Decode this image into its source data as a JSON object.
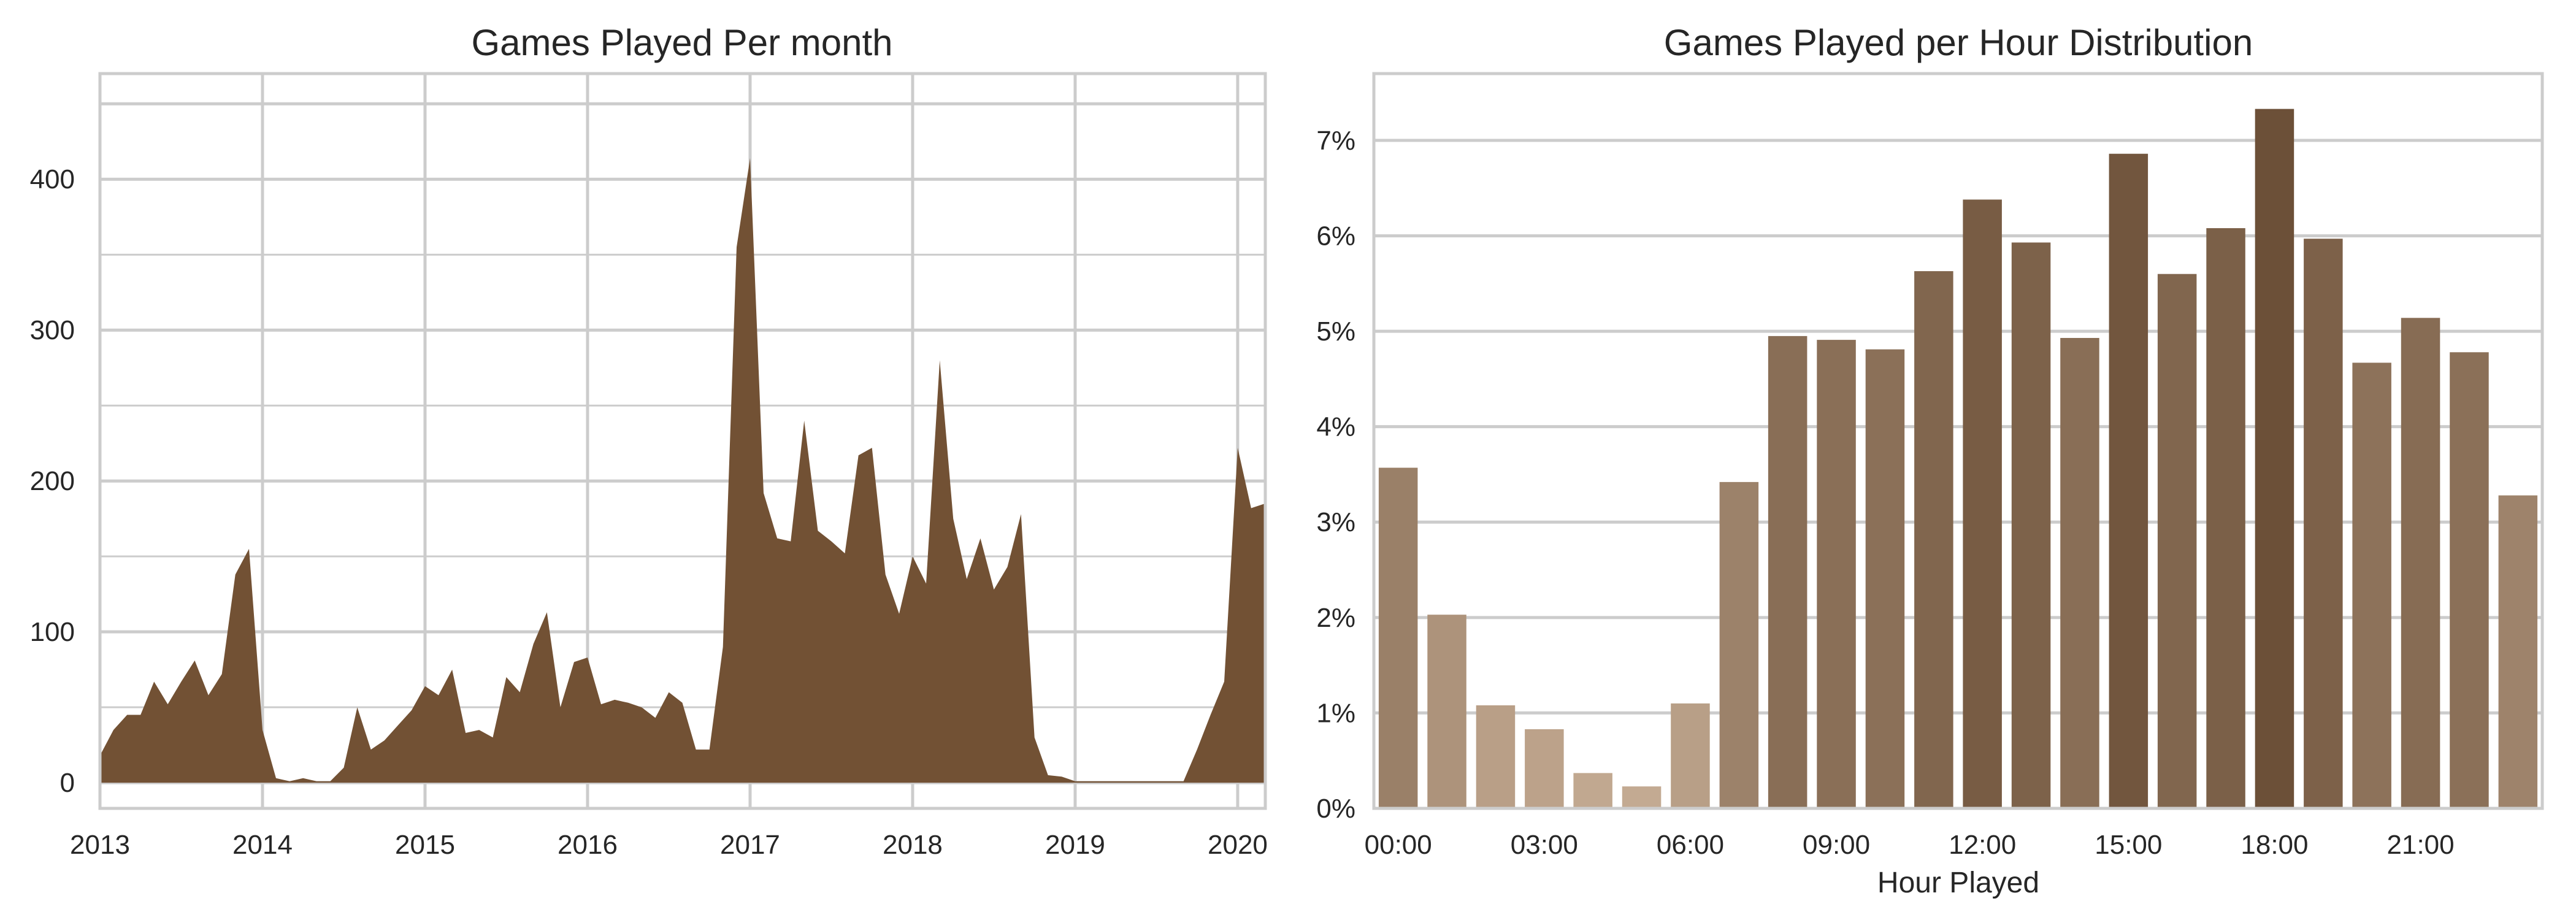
{
  "chart_data": [
    {
      "type": "area",
      "title": "Games Played Per month",
      "xlabel": "",
      "ylabel": "",
      "x_ticks": [
        "2013",
        "2014",
        "2015",
        "2016",
        "2017",
        "2018",
        "2019",
        "2020"
      ],
      "y_ticks": [
        "0",
        "100",
        "200",
        "300",
        "400"
      ],
      "xlim": [
        2013.0,
        2020.17
      ],
      "ylim": [
        -17,
        470
      ],
      "grid": true,
      "color": "#725134",
      "series": [
        {
          "x": [
            2013.0,
            2013.083,
            2013.167,
            2013.25,
            2013.333,
            2013.417,
            2013.5,
            2013.583,
            2013.667,
            2013.75,
            2013.833,
            2013.917,
            2014.0,
            2014.083,
            2014.167,
            2014.25,
            2014.333,
            2014.417,
            2014.5,
            2014.583,
            2014.667,
            2014.75,
            2014.833,
            2014.917,
            2015.0,
            2015.083,
            2015.167,
            2015.25,
            2015.333,
            2015.417,
            2015.5,
            2015.583,
            2015.667,
            2015.75,
            2015.833,
            2015.917,
            2016.0,
            2016.083,
            2016.167,
            2016.25,
            2016.333,
            2016.417,
            2016.5,
            2016.583,
            2016.667,
            2016.75,
            2016.833,
            2016.917,
            2017.0,
            2017.083,
            2017.167,
            2017.25,
            2017.333,
            2017.417,
            2017.5,
            2017.583,
            2017.667,
            2017.75,
            2017.833,
            2017.917,
            2018.0,
            2018.083,
            2018.167,
            2018.25,
            2018.333,
            2018.417,
            2018.5,
            2018.583,
            2018.667,
            2018.75,
            2018.833,
            2018.917,
            2019.0,
            2019.083,
            2019.167,
            2019.25,
            2019.333,
            2019.417,
            2019.5,
            2019.583,
            2019.667,
            2019.75,
            2019.833,
            2019.917,
            2020.0,
            2020.083,
            2020.167
          ],
          "y": [
            18,
            35,
            45,
            45,
            67,
            52,
            67,
            81,
            58,
            72,
            138,
            155,
            35,
            3,
            1,
            3,
            1,
            1,
            10,
            50,
            22,
            28,
            38,
            48,
            64,
            58,
            75,
            33,
            35,
            30,
            70,
            60,
            92,
            113,
            50,
            80,
            83,
            52,
            55,
            53,
            50,
            43,
            60,
            53,
            22,
            22,
            90,
            355,
            414,
            192,
            162,
            160,
            240,
            167,
            160,
            152,
            217,
            222,
            138,
            112,
            150,
            132,
            280,
            175,
            135,
            162,
            128,
            143,
            178,
            30,
            5,
            4,
            1,
            1,
            1,
            1,
            1,
            1,
            1,
            1,
            1,
            22,
            45,
            67,
            222,
            182,
            185
          ]
        }
      ]
    },
    {
      "type": "bar",
      "title": "Games Played per Hour Distribution",
      "xlabel": "Hour Played",
      "ylabel": "",
      "categories": [
        "00:00",
        "01:00",
        "02:00",
        "03:00",
        "04:00",
        "05:00",
        "06:00",
        "07:00",
        "08:00",
        "09:00",
        "10:00",
        "11:00",
        "12:00",
        "13:00",
        "14:00",
        "15:00",
        "16:00",
        "17:00",
        "18:00",
        "19:00",
        "20:00",
        "21:00",
        "22:00",
        "23:00"
      ],
      "x_ticks": [
        "00:00",
        "03:00",
        "06:00",
        "09:00",
        "12:00",
        "15:00",
        "18:00",
        "21:00"
      ],
      "values": [
        3.57,
        2.03,
        1.08,
        0.83,
        0.37,
        0.23,
        1.1,
        3.42,
        4.95,
        4.91,
        4.81,
        5.63,
        6.38,
        5.93,
        4.93,
        6.86,
        5.6,
        6.08,
        7.33,
        5.97,
        4.67,
        5.14,
        4.78,
        3.28
      ],
      "y_ticks": [
        "0%",
        "1%",
        "2%",
        "3%",
        "4%",
        "5%",
        "6%",
        "7%"
      ],
      "ylim": [
        0,
        7.7
      ],
      "unit": "%",
      "grid": true,
      "color_light": "#c3aa92",
      "color_dark": "#6c5038"
    }
  ]
}
